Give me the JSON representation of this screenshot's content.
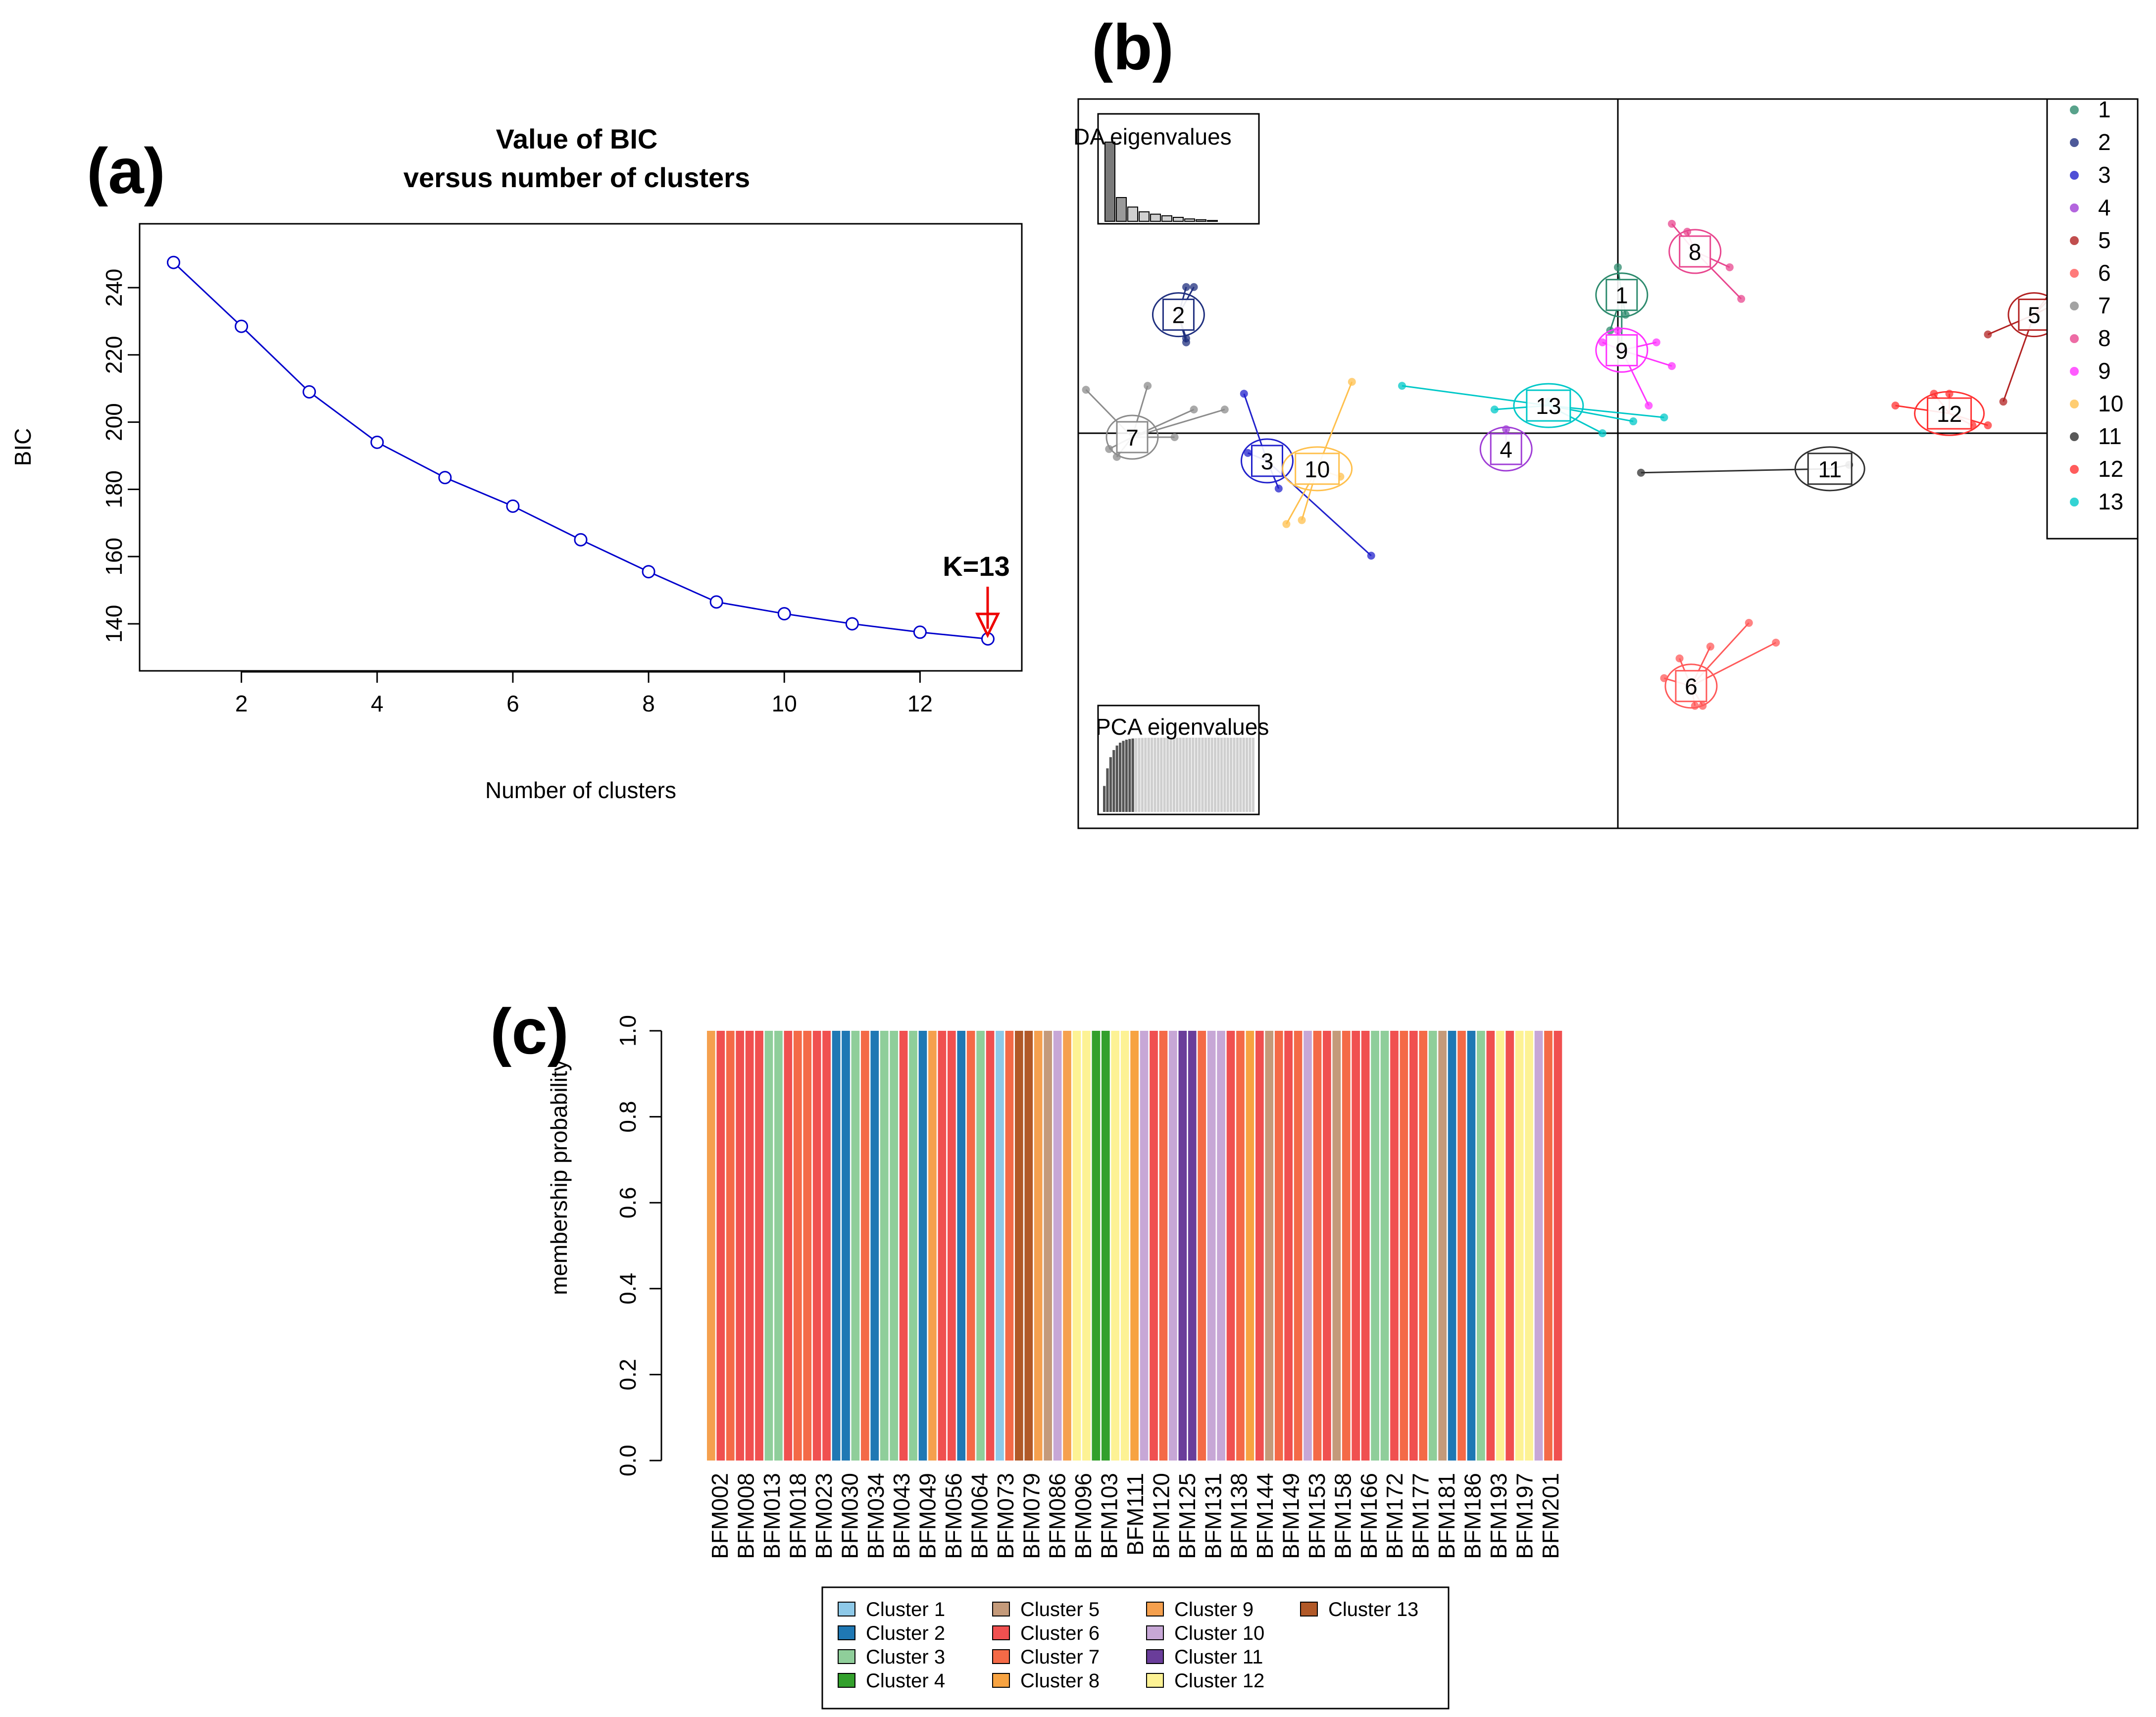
{
  "chart_data": [
    {
      "panel": "(a)",
      "type": "line",
      "title": "Value of BIC",
      "subtitle": "versus number of clusters",
      "xlabel": "Number of clusters",
      "ylabel": "BIC",
      "x": [
        1,
        2,
        3,
        4,
        5,
        6,
        7,
        8,
        9,
        10,
        11,
        12,
        13
      ],
      "y": [
        247.5,
        228.5,
        209,
        194,
        183.5,
        175,
        165,
        155.5,
        146.5,
        143,
        140,
        137.5,
        135.5
      ],
      "xticks": [
        2,
        4,
        6,
        8,
        10,
        12
      ],
      "yticks": [
        140,
        160,
        180,
        200,
        220,
        240
      ],
      "xlim": [
        0.5,
        13.5
      ],
      "ylim": [
        126,
        259
      ],
      "color": "#0000cc",
      "annotation": {
        "text": "K=13",
        "x": 13,
        "color": "#ee0000"
      }
    },
    {
      "panel": "(b)",
      "type": "scatter",
      "inset_da_label": "DA eigenvalues",
      "inset_pca_label": "PCA eigenvalues",
      "da_eigenvalues": [
        1.0,
        0.3,
        0.18,
        0.12,
        0.09,
        0.07,
        0.05,
        0.03,
        0.02,
        0.01
      ],
      "xlim": [
        -7,
        6.7
      ],
      "ylim": [
        -5,
        4.3
      ],
      "clusters": [
        {
          "label": "1",
          "color": "#2e8b6e",
          "center": [
            0.05,
            1.75
          ],
          "points": [
            [
              0.0,
              2.1
            ],
            [
              0.1,
              1.5
            ],
            [
              -0.1,
              1.3
            ],
            [
              0.05,
              1.1
            ]
          ]
        },
        {
          "label": "2",
          "color": "#20307f",
          "center": [
            -5.7,
            1.5
          ],
          "points": [
            [
              -5.6,
              1.85
            ],
            [
              -5.5,
              1.85
            ],
            [
              -5.6,
              1.2
            ],
            [
              -5.6,
              1.15
            ]
          ]
        },
        {
          "label": "3",
          "color": "#2222cc",
          "center": [
            -4.55,
            -0.35
          ],
          "points": [
            [
              -4.85,
              0.5
            ],
            [
              -3.2,
              -1.55
            ],
            [
              -4.4,
              -0.7
            ],
            [
              -4.8,
              -0.25
            ]
          ]
        },
        {
          "label": "4",
          "color": "#a03ed6",
          "center": [
            -1.45,
            -0.2
          ],
          "points": [
            [
              -1.45,
              0.05
            ]
          ]
        },
        {
          "label": "5",
          "color": "#b22222",
          "center": [
            5.4,
            1.5
          ],
          "points": [
            [
              4.8,
              1.25
            ],
            [
              5.0,
              0.4
            ],
            [
              5.7,
              1.9
            ],
            [
              5.8,
              1.9
            ],
            [
              5.9,
              1.75
            ]
          ]
        },
        {
          "label": "6",
          "color": "#ff5a5a",
          "center": [
            0.95,
            -3.2
          ],
          "points": [
            [
              0.8,
              -2.85
            ],
            [
              1.2,
              -2.7
            ],
            [
              1.7,
              -2.4
            ],
            [
              2.05,
              -2.65
            ],
            [
              1.0,
              -3.45
            ],
            [
              1.1,
              -3.45
            ],
            [
              0.6,
              -3.1
            ]
          ]
        },
        {
          "label": "7",
          "color": "#8c8c8c",
          "center": [
            -6.3,
            -0.05
          ],
          "points": [
            [
              -6.9,
              0.55
            ],
            [
              -6.6,
              -0.2
            ],
            [
              -6.1,
              0.6
            ],
            [
              -5.5,
              0.3
            ],
            [
              -5.75,
              -0.05
            ],
            [
              -6.5,
              -0.3
            ],
            [
              -5.1,
              0.3
            ]
          ]
        },
        {
          "label": "8",
          "color": "#e8478f",
          "center": [
            1.0,
            2.3
          ],
          "points": [
            [
              0.7,
              2.65
            ],
            [
              1.45,
              2.1
            ],
            [
              1.6,
              1.7
            ],
            [
              0.9,
              2.55
            ]
          ]
        },
        {
          "label": "9",
          "color": "#ff33ff",
          "center": [
            0.05,
            1.05
          ],
          "points": [
            [
              -0.2,
              1.15
            ],
            [
              0.5,
              1.15
            ],
            [
              0.7,
              0.85
            ],
            [
              0.4,
              0.35
            ],
            [
              0.0,
              1.3
            ]
          ]
        },
        {
          "label": "10",
          "color": "#ffc04d",
          "center": [
            -3.9,
            -0.45
          ],
          "points": [
            [
              -3.45,
              0.65
            ],
            [
              -4.1,
              -1.1
            ],
            [
              -3.6,
              -0.55
            ],
            [
              -4.3,
              -1.15
            ]
          ]
        },
        {
          "label": "11",
          "color": "#303030",
          "center": [
            2.75,
            -0.45
          ],
          "points": [
            [
              3.0,
              -0.4
            ],
            [
              0.3,
              -0.5
            ]
          ]
        },
        {
          "label": "12",
          "color": "#ff3333",
          "center": [
            4.3,
            0.25
          ],
          "points": [
            [
              3.6,
              0.35
            ],
            [
              4.1,
              0.5
            ],
            [
              4.3,
              0.5
            ],
            [
              4.6,
              0.1
            ],
            [
              4.8,
              0.1
            ]
          ]
        },
        {
          "label": "13",
          "color": "#00c8c8",
          "center": [
            -0.9,
            0.35
          ],
          "points": [
            [
              -2.8,
              0.6
            ],
            [
              -1.6,
              0.3
            ],
            [
              0.2,
              0.15
            ],
            [
              -0.2,
              0.0
            ],
            [
              -0.9,
              0.4
            ],
            [
              0.6,
              0.2
            ]
          ]
        }
      ]
    },
    {
      "panel": "(c)",
      "type": "bar",
      "ylabel": "membership probability",
      "ylim": [
        0,
        1
      ],
      "yticks": [
        "0.0",
        "0.2",
        "0.4",
        "0.6",
        "0.8",
        "1.0"
      ],
      "tick_labels": [
        "BFM002",
        "BFM008",
        "BFM013",
        "BFM018",
        "BFM023",
        "BFM030",
        "BFM034",
        "BFM043",
        "BFM049",
        "BFM056",
        "BFM064",
        "BFM073",
        "BFM079",
        "BFM086",
        "BFM096",
        "BFM103",
        "BFM111",
        "BFM120",
        "BFM125",
        "BFM131",
        "BFM138",
        "BFM144",
        "BFM149",
        "BFM153",
        "BFM158",
        "BFM166",
        "BFM172",
        "BFM177",
        "BFM181",
        "BFM186",
        "BFM193",
        "BFM197",
        "BFM201"
      ],
      "bar_clusters": [
        9,
        6,
        7,
        6,
        6,
        6,
        3,
        3,
        6,
        7,
        7,
        6,
        6,
        2,
        2,
        3,
        7,
        2,
        3,
        3,
        6,
        3,
        2,
        9,
        6,
        6,
        2,
        7,
        3,
        6,
        1,
        7,
        13,
        13,
        9,
        5,
        10,
        9,
        12,
        12,
        4,
        4,
        12,
        12,
        8,
        10,
        6,
        7,
        10,
        11,
        11,
        7,
        10,
        10,
        6,
        7,
        8,
        6,
        5,
        7,
        6,
        7,
        10,
        7,
        6,
        5,
        7,
        6,
        6,
        3,
        3,
        6,
        7,
        6,
        7,
        3,
        5,
        2,
        7,
        2,
        3,
        6,
        12,
        6,
        12,
        12,
        10,
        7,
        6
      ],
      "partial_bars": [
        {
          "index": 43,
          "value": 0.89,
          "secondary_cluster": 12
        }
      ],
      "colors": {
        "1": "#8ec9e8",
        "2": "#1f78b4",
        "3": "#8fce9a",
        "4": "#33a02c",
        "5": "#c49a7a",
        "6": "#f05050",
        "7": "#f46a47",
        "8": "#f7a341",
        "9": "#f5a04e",
        "10": "#c7a7d6",
        "11": "#6a3d9a",
        "12": "#fdf294",
        "13": "#b15928"
      },
      "legend": [
        {
          "label": "Cluster 1",
          "cluster": 1
        },
        {
          "label": "Cluster 2",
          "cluster": 2
        },
        {
          "label": "Cluster 3",
          "cluster": 3
        },
        {
          "label": "Cluster 4",
          "cluster": 4
        },
        {
          "label": "Cluster 5",
          "cluster": 5
        },
        {
          "label": "Cluster 6",
          "cluster": 6
        },
        {
          "label": "Cluster 7",
          "cluster": 7
        },
        {
          "label": "Cluster 8",
          "cluster": 8
        },
        {
          "label": "Cluster 9",
          "cluster": 9
        },
        {
          "label": "Cluster 10",
          "cluster": 10
        },
        {
          "label": "Cluster 11",
          "cluster": 11
        },
        {
          "label": "Cluster 12",
          "cluster": 12
        },
        {
          "label": "Cluster 13",
          "cluster": 13
        }
      ]
    }
  ]
}
